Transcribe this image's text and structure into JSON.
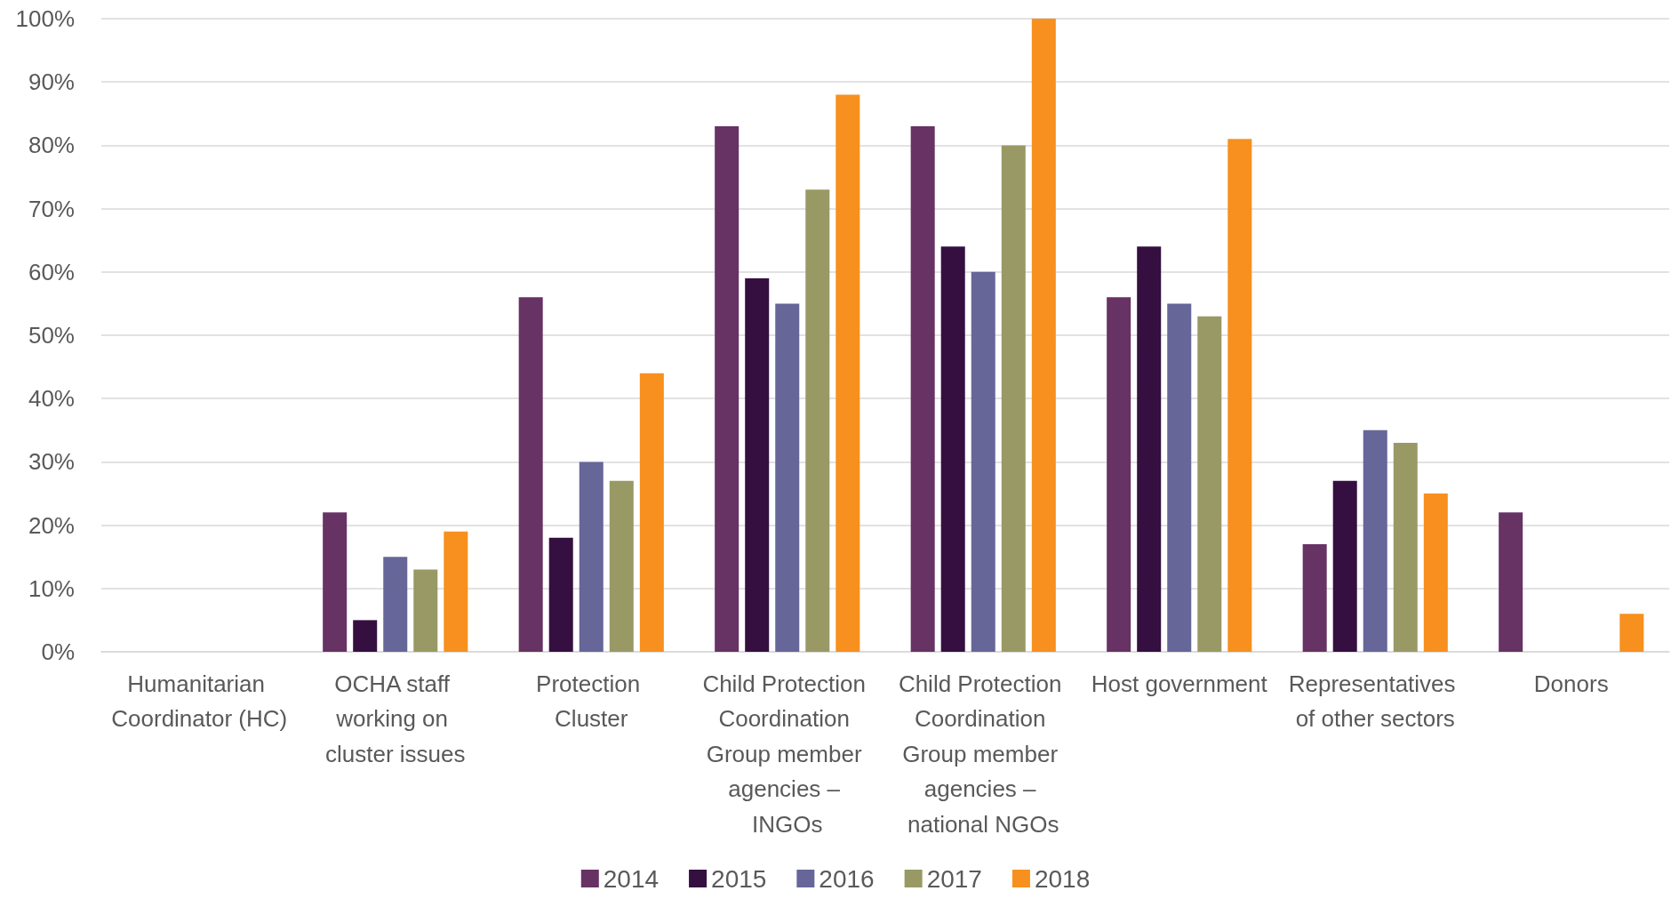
{
  "chart_data": {
    "type": "bar",
    "categories": [
      "Humanitarian Coordinator (HC)",
      "OCHA staff working on cluster issues",
      "Protection Cluster",
      "Child Protection Coordination Group member agencies – INGOs",
      "Child Protection Coordination Group member agencies – national NGOs",
      "Host government",
      "Representatives of other sectors",
      "Donors"
    ],
    "series": [
      {
        "name": "2014",
        "color": "#673264",
        "values": [
          null,
          22,
          56,
          83,
          83,
          56,
          17,
          22
        ]
      },
      {
        "name": "2015",
        "color": "#350f40",
        "values": [
          null,
          5,
          18,
          59,
          64,
          64,
          27,
          null
        ]
      },
      {
        "name": "2016",
        "color": "#666699",
        "values": [
          null,
          15,
          30,
          55,
          60,
          55,
          35,
          null
        ]
      },
      {
        "name": "2017",
        "color": "#999966",
        "values": [
          null,
          13,
          27,
          73,
          80,
          53,
          33,
          null
        ]
      },
      {
        "name": "2018",
        "color": "#f7901e",
        "values": [
          null,
          19,
          44,
          88,
          100,
          81,
          25,
          6
        ]
      }
    ],
    "ylim": [
      0,
      100
    ],
    "yticks": [
      {
        "value": 0,
        "label": "0%"
      },
      {
        "value": 10,
        "label": "10%"
      },
      {
        "value": 20,
        "label": "20%"
      },
      {
        "value": 30,
        "label": "30%"
      },
      {
        "value": 40,
        "label": "40%"
      },
      {
        "value": 50,
        "label": "50%"
      },
      {
        "value": 60,
        "label": "60%"
      },
      {
        "value": 70,
        "label": "70%"
      },
      {
        "value": 80,
        "label": "80%"
      },
      {
        "value": 90,
        "label": "90%"
      },
      {
        "value": 100,
        "label": "100%"
      }
    ],
    "grid": "y",
    "legend": "bottom"
  }
}
